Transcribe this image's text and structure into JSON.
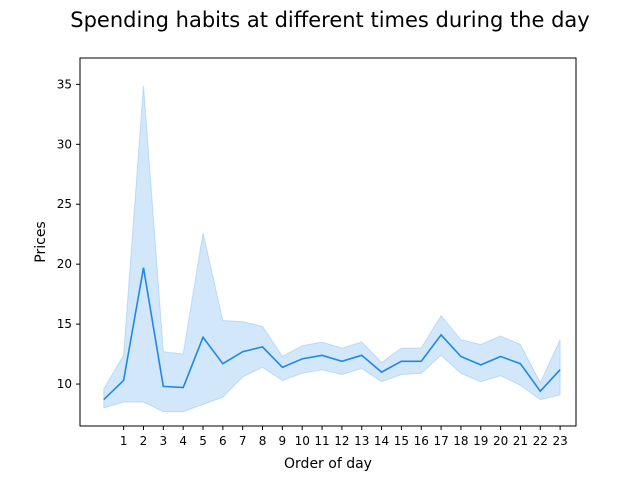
{
  "chart_data": {
    "type": "line",
    "title": "Spending habits at different times during the day",
    "xlabel": "Order of day",
    "ylabel": "Prices",
    "x_tick_labels": [
      "1",
      "2",
      "3",
      "4",
      "5",
      "6",
      "7",
      "8",
      "9",
      "10",
      "11",
      "12",
      "13",
      "14",
      "15",
      "16",
      "17",
      "18",
      "19",
      "20",
      "21",
      "22",
      "23"
    ],
    "y_ticks": [
      10,
      15,
      20,
      25,
      30,
      35
    ],
    "xlim": [
      -1.2,
      23.8
    ],
    "ylim": [
      6.5,
      37.2
    ],
    "grid": false,
    "series": [
      {
        "x": [
          0,
          1,
          2,
          3,
          4,
          5,
          6,
          7,
          8,
          9,
          10,
          11,
          12,
          13,
          14,
          15,
          16,
          17,
          18,
          19,
          20,
          21,
          22,
          23
        ],
        "values": [
          8.7,
          10.3,
          19.7,
          9.8,
          9.7,
          13.9,
          11.7,
          12.7,
          13.1,
          11.4,
          12.1,
          12.4,
          11.9,
          12.4,
          11.0,
          11.9,
          11.9,
          14.1,
          12.3,
          11.6,
          12.3,
          11.7,
          9.4,
          11.2
        ],
        "ci_lower": [
          8.0,
          8.5,
          8.5,
          7.7,
          7.7,
          8.3,
          8.9,
          10.6,
          11.4,
          10.3,
          10.9,
          11.2,
          10.8,
          11.3,
          10.2,
          10.8,
          10.9,
          12.4,
          10.9,
          10.2,
          10.7,
          9.9,
          8.7,
          9.1
        ],
        "ci_upper": [
          9.6,
          12.4,
          34.9,
          12.7,
          12.5,
          22.6,
          15.3,
          15.2,
          14.8,
          12.3,
          13.2,
          13.5,
          13.0,
          13.5,
          11.8,
          13.0,
          13.0,
          15.7,
          13.7,
          13.3,
          14.0,
          13.3,
          10.1,
          13.7
        ],
        "color": "#1e88e5",
        "band_color": "#90c4f5"
      }
    ]
  }
}
